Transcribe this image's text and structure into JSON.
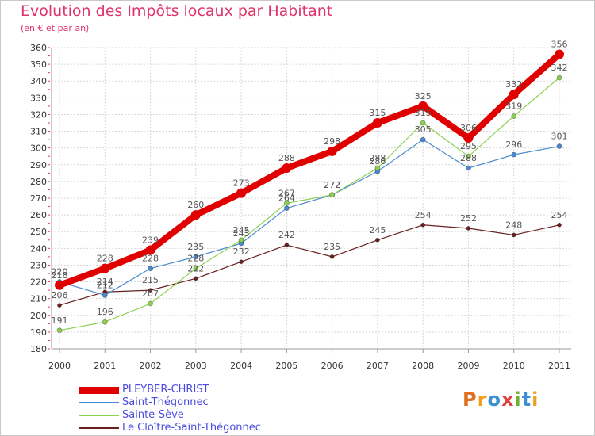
{
  "title": "Evolution des Impôts locaux par Habitant",
  "subtitle": "(en € et par an)",
  "chart_data": {
    "type": "line",
    "title": "Evolution des Impôts locaux par Habitant",
    "ylabel": "(en € et par an)",
    "xlabel": "",
    "categories": [
      "2000",
      "2001",
      "2002",
      "2003",
      "2004",
      "2005",
      "2006",
      "2007",
      "2008",
      "2009",
      "2010",
      "2011"
    ],
    "ylim": [
      180,
      360
    ],
    "yticks": [
      180,
      190,
      200,
      210,
      220,
      230,
      240,
      250,
      260,
      270,
      280,
      290,
      300,
      310,
      320,
      330,
      340,
      350,
      360
    ],
    "grid": true,
    "legend_position": "bottom-left",
    "series": [
      {
        "name": "PLEYBER-CHRIST",
        "color": "#e00000",
        "values": [
          218,
          228,
          239,
          260,
          273,
          288,
          298,
          315,
          325,
          306,
          332,
          356
        ],
        "labels": [
          "218",
          "228",
          "239",
          "260",
          "273",
          "288",
          "298",
          "315",
          "325",
          "306",
          "332",
          "356"
        ]
      },
      {
        "name": "Saint-Thégonnec",
        "color": "#4a8ad0",
        "values": [
          220,
          212,
          228,
          235,
          243,
          264,
          272,
          286,
          305,
          288,
          296,
          301
        ],
        "labels": [
          "220",
          "212",
          "228",
          "235",
          "243",
          "264",
          "272",
          "286",
          "305",
          "288",
          "296",
          "301"
        ]
      },
      {
        "name": "Sainte-Sève",
        "color": "#8cd050",
        "values": [
          191,
          196,
          207,
          228,
          245,
          267,
          272,
          288,
          315,
          295,
          319,
          342
        ],
        "labels": [
          "191",
          "196",
          "207",
          "228",
          "245",
          "267",
          "272",
          "288",
          "315",
          "295",
          "319",
          "342"
        ]
      },
      {
        "name": "Le Cloître-Saint-Thégonnec",
        "color": "#6a2020",
        "values": [
          206,
          214,
          215,
          222,
          232,
          242,
          235,
          245,
          254,
          252,
          248,
          254
        ],
        "labels": [
          "206",
          "214",
          "215",
          "222",
          "232",
          "242",
          "235",
          "245",
          "254",
          "252",
          "248",
          "254"
        ]
      }
    ]
  },
  "legend": [
    {
      "label": "PLEYBER-CHRIST",
      "color": "#e00000"
    },
    {
      "label": "Saint-Thégonnec",
      "color": "#4a8ad0"
    },
    {
      "label": "Sainte-Sève",
      "color": "#8cd050"
    },
    {
      "label": "Le Cloître-Saint-Thégonnec",
      "color": "#6a2020"
    }
  ],
  "logo": {
    "letters": [
      {
        "ch": "P",
        "color": "#e07020"
      },
      {
        "ch": "r",
        "color": "#f0a020"
      },
      {
        "ch": "o",
        "color": "#3a90d0"
      },
      {
        "ch": "x",
        "color": "#e04040"
      },
      {
        "ch": "i",
        "color": "#70b030"
      },
      {
        "ch": "t",
        "color": "#3a90d0"
      },
      {
        "ch": "i",
        "color": "#f0a020"
      }
    ]
  }
}
